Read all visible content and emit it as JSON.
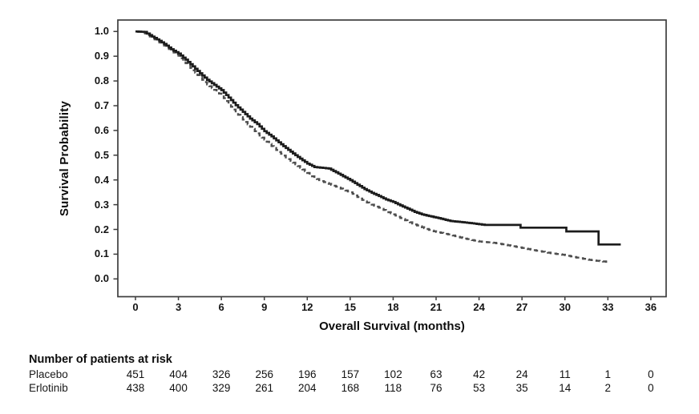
{
  "figure": {
    "background": "#ffffff",
    "axis_color": "#3d3d3d"
  },
  "chart_data": {
    "type": "line",
    "subtype": "kaplan-meier-step",
    "title": "",
    "xlabel": "Overall Survival (months)",
    "ylabel": "Survival Probability",
    "xlim": [
      0,
      36
    ],
    "ylim": [
      0.0,
      1.0
    ],
    "x_ticks": [
      "0",
      "3",
      "6",
      "9",
      "12",
      "15",
      "18",
      "21",
      "24",
      "27",
      "30",
      "33",
      "36"
    ],
    "y_ticks": [
      "1.0",
      "0.9",
      "0.8",
      "0.7",
      "0.6",
      "0.5",
      "0.4",
      "0.3",
      "0.2",
      "0.1",
      "0.0"
    ],
    "grid": false,
    "legend_position": "none",
    "series": [
      {
        "name": "Placebo",
        "style": "dashed",
        "color": "#4e4e4e",
        "points": [
          [
            0,
            1.0
          ],
          [
            0.5,
            0.998
          ],
          [
            1,
            0.98
          ],
          [
            1.5,
            0.962
          ],
          [
            2,
            0.943
          ],
          [
            2.5,
            0.922
          ],
          [
            3,
            0.902
          ],
          [
            3.5,
            0.872
          ],
          [
            4,
            0.843
          ],
          [
            4.5,
            0.814
          ],
          [
            5,
            0.786
          ],
          [
            5.5,
            0.764
          ],
          [
            6,
            0.742
          ],
          [
            6.5,
            0.707
          ],
          [
            7,
            0.673
          ],
          [
            7.5,
            0.644
          ],
          [
            8,
            0.615
          ],
          [
            8.5,
            0.588
          ],
          [
            9,
            0.563
          ],
          [
            9.5,
            0.537
          ],
          [
            10,
            0.513
          ],
          [
            10.5,
            0.491
          ],
          [
            11,
            0.47
          ],
          [
            11.5,
            0.449
          ],
          [
            12,
            0.428
          ],
          [
            12.5,
            0.408
          ],
          [
            13,
            0.395
          ],
          [
            13.5,
            0.384
          ],
          [
            14,
            0.373
          ],
          [
            14.5,
            0.361
          ],
          [
            15,
            0.35
          ],
          [
            15.5,
            0.331
          ],
          [
            16,
            0.313
          ],
          [
            16.5,
            0.3
          ],
          [
            17,
            0.288
          ],
          [
            17.5,
            0.274
          ],
          [
            18,
            0.261
          ],
          [
            18.5,
            0.246
          ],
          [
            19,
            0.233
          ],
          [
            19.5,
            0.22
          ],
          [
            20,
            0.209
          ],
          [
            20.5,
            0.198
          ],
          [
            21,
            0.19
          ],
          [
            21.5,
            0.184
          ],
          [
            22,
            0.178
          ],
          [
            22.5,
            0.17
          ],
          [
            23,
            0.163
          ],
          [
            23.5,
            0.157
          ],
          [
            24,
            0.151
          ],
          [
            25,
            0.146
          ],
          [
            26,
            0.136
          ],
          [
            27,
            0.125
          ],
          [
            28,
            0.114
          ],
          [
            29,
            0.104
          ],
          [
            30,
            0.096
          ],
          [
            30.8,
            0.086
          ],
          [
            31.5,
            0.079
          ],
          [
            32.2,
            0.073
          ],
          [
            33.1,
            0.068
          ]
        ]
      },
      {
        "name": "Erlotinib",
        "style": "solid",
        "color": "#1c1c1c",
        "points": [
          [
            0,
            1.0
          ],
          [
            0.6,
            0.998
          ],
          [
            1,
            0.985
          ],
          [
            1.5,
            0.968
          ],
          [
            2,
            0.95
          ],
          [
            2.5,
            0.928
          ],
          [
            3,
            0.911
          ],
          [
            3.5,
            0.886
          ],
          [
            4,
            0.859
          ],
          [
            4.5,
            0.831
          ],
          [
            5,
            0.805
          ],
          [
            5.5,
            0.784
          ],
          [
            6,
            0.763
          ],
          [
            6.5,
            0.733
          ],
          [
            7,
            0.702
          ],
          [
            7.5,
            0.675
          ],
          [
            8,
            0.648
          ],
          [
            8.5,
            0.626
          ],
          [
            9,
            0.597
          ],
          [
            9.5,
            0.576
          ],
          [
            10,
            0.552
          ],
          [
            10.5,
            0.529
          ],
          [
            11,
            0.507
          ],
          [
            11.5,
            0.486
          ],
          [
            12,
            0.466
          ],
          [
            12.5,
            0.452
          ],
          [
            13.5,
            0.446
          ],
          [
            14,
            0.431
          ],
          [
            14.5,
            0.415
          ],
          [
            15,
            0.399
          ],
          [
            15.5,
            0.381
          ],
          [
            16,
            0.363
          ],
          [
            16.5,
            0.348
          ],
          [
            17,
            0.335
          ],
          [
            17.5,
            0.321
          ],
          [
            18,
            0.311
          ],
          [
            18.5,
            0.297
          ],
          [
            19,
            0.284
          ],
          [
            19.5,
            0.271
          ],
          [
            20,
            0.261
          ],
          [
            20.5,
            0.254
          ],
          [
            21,
            0.248
          ],
          [
            21.5,
            0.241
          ],
          [
            22,
            0.234
          ],
          [
            22.5,
            0.231
          ],
          [
            23,
            0.228
          ],
          [
            23.5,
            0.225
          ],
          [
            24,
            0.221
          ],
          [
            24.4,
            0.218
          ],
          [
            26.9,
            0.207
          ],
          [
            30.1,
            0.192
          ],
          [
            32.35,
            0.139
          ],
          [
            33.9,
            0.139
          ]
        ]
      }
    ]
  },
  "risk_table": {
    "title": "Number of patients at risk",
    "months": [
      0,
      3,
      6,
      9,
      12,
      15,
      18,
      21,
      24,
      27,
      30,
      33,
      36
    ],
    "rows": [
      {
        "label": "Placebo",
        "counts": [
          451,
          404,
          326,
          256,
          196,
          157,
          102,
          63,
          42,
          24,
          11,
          1,
          0
        ]
      },
      {
        "label": "Erlotinib",
        "counts": [
          438,
          400,
          329,
          261,
          204,
          168,
          118,
          76,
          53,
          35,
          14,
          2,
          0
        ]
      }
    ]
  }
}
